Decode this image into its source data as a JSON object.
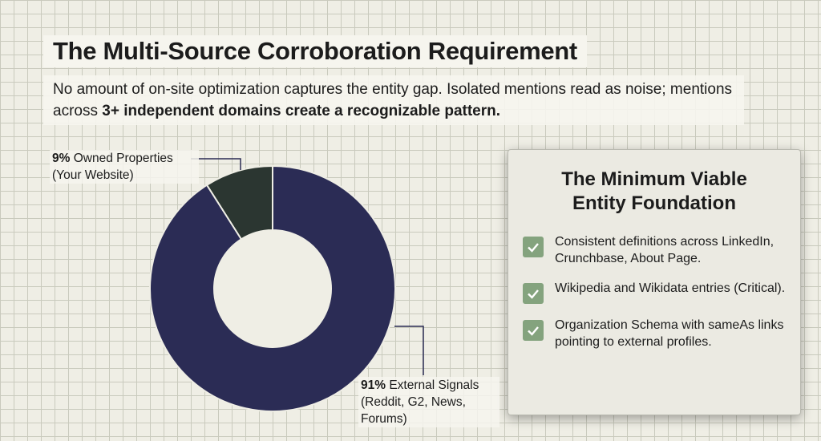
{
  "chart_data": {
    "type": "donut",
    "title": "The Multi-Source Corroboration Requirement",
    "subtitle": "No amount of on-site optimization captures the entity gap. Isolated mentions read as noise; mentions across",
    "subtitle_emphasis": "3+ independent domains create a recognizable pattern.",
    "categories": [
      "Owned Properties (Your Website)",
      "External Signals (Reddit, G2, News, Forums)"
    ],
    "values": [
      9,
      91
    ],
    "value_labels": [
      "9%",
      "91%"
    ],
    "colors": [
      "#2b3631",
      "#2b2c55"
    ]
  },
  "panel": {
    "title": "The Minimum Viable Entity Foundation",
    "items": [
      "Consistent definitions across LinkedIn, Crunchbase, About Page.",
      "Wikipedia and Wikidata entries (Critical).",
      "Organization Schema with sameAs links pointing to external profiles."
    ]
  }
}
